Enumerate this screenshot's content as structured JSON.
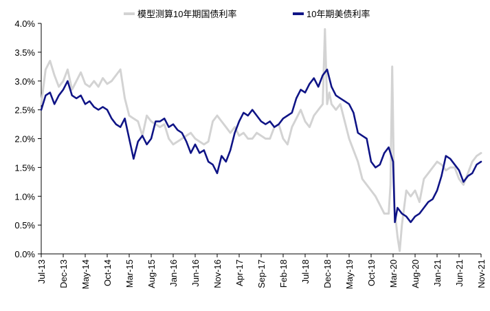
{
  "chart_data": {
    "type": "line",
    "title": "",
    "xlabel": "",
    "ylabel": "",
    "ylim": [
      0,
      4
    ],
    "y_ticks": [
      "0.0%",
      "0.5%",
      "1.0%",
      "1.5%",
      "2.0%",
      "2.5%",
      "3.0%",
      "3.5%",
      "4.0%"
    ],
    "x_tick_labels": [
      "Jul-13",
      "Dec-13",
      "May-14",
      "Oct-14",
      "Mar-15",
      "Aug-15",
      "Jan-16",
      "Jun-16",
      "Nov-16",
      "Apr-17",
      "Sep-17",
      "Feb-18",
      "Jul-18",
      "Dec-18",
      "May-19",
      "Oct-19",
      "Mar-20",
      "Aug-20",
      "Jan-21",
      "Jun-21",
      "Nov-21"
    ],
    "x_unit": "months since Jul-13",
    "xlim": [
      0,
      100
    ],
    "legend_position": "top",
    "series": [
      {
        "name": "模型测算10年期国债利率",
        "color": "#d3d3d3",
        "x": [
          0,
          1,
          2,
          3,
          4,
          5,
          6,
          7,
          8,
          9,
          10,
          11,
          12,
          13,
          14,
          15,
          16,
          17,
          18,
          19,
          20,
          21,
          22,
          23,
          24,
          25,
          26,
          27,
          28,
          29,
          30,
          31,
          32,
          33,
          34,
          35,
          36,
          37,
          38,
          39,
          40,
          41,
          42,
          43,
          44,
          45,
          46,
          47,
          48,
          49,
          50,
          51,
          52,
          53,
          54,
          55,
          56,
          57,
          58,
          59,
          60,
          61,
          62,
          63,
          64,
          64.5,
          65,
          65.5,
          66,
          67,
          68,
          69,
          70,
          71,
          72,
          73,
          74,
          75,
          76,
          77,
          78,
          79,
          79.4,
          79.8,
          80.3,
          81,
          81.5,
          82,
          83,
          84,
          85,
          86,
          87,
          88,
          89,
          90,
          91,
          92,
          93,
          94,
          95,
          96,
          97,
          98,
          99,
          100
        ],
        "values": [
          2.6,
          3.2,
          3.35,
          3.1,
          2.9,
          3.0,
          3.2,
          2.85,
          3.0,
          3.15,
          2.95,
          2.9,
          3.0,
          2.9,
          3.05,
          2.95,
          3.0,
          3.1,
          3.2,
          2.7,
          2.4,
          2.35,
          2.3,
          2.05,
          2.4,
          2.3,
          2.25,
          2.2,
          2.25,
          2.0,
          1.9,
          1.95,
          2.0,
          2.05,
          2.1,
          2.0,
          1.95,
          1.9,
          1.95,
          2.3,
          2.4,
          2.3,
          2.2,
          2.1,
          2.2,
          2.05,
          2.1,
          2.0,
          2.0,
          2.1,
          2.05,
          2.0,
          2.0,
          2.2,
          2.25,
          2.0,
          1.9,
          2.2,
          2.35,
          2.5,
          2.3,
          2.2,
          2.4,
          2.5,
          2.6,
          3.9,
          2.6,
          2.8,
          2.6,
          2.5,
          2.6,
          2.3,
          2.0,
          1.8,
          1.6,
          1.3,
          1.2,
          1.1,
          1.0,
          0.85,
          0.7,
          0.7,
          1.2,
          3.25,
          0.8,
          0.3,
          0.05,
          0.5,
          1.1,
          1.0,
          1.1,
          0.9,
          1.3,
          1.4,
          1.5,
          1.6,
          1.55,
          1.45,
          1.5,
          1.5,
          1.3,
          1.2,
          1.4,
          1.6,
          1.7,
          1.75
        ]
      },
      {
        "name": "10年期美债利率",
        "color": "#0f1486",
        "x": [
          0,
          1,
          2,
          3,
          4,
          5,
          6,
          7,
          8,
          9,
          10,
          11,
          12,
          13,
          14,
          15,
          16,
          17,
          18,
          19,
          20,
          21,
          22,
          23,
          24,
          25,
          26,
          27,
          28,
          29,
          30,
          31,
          32,
          33,
          34,
          35,
          36,
          37,
          38,
          39,
          40,
          41,
          42,
          43,
          44,
          45,
          46,
          47,
          48,
          49,
          50,
          51,
          52,
          53,
          54,
          55,
          56,
          57,
          58,
          59,
          60,
          61,
          62,
          63,
          64,
          65,
          66,
          67,
          68,
          69,
          70,
          71,
          72,
          73,
          74,
          75,
          76,
          77,
          78,
          79,
          80,
          80.4,
          81,
          82,
          83,
          84,
          85,
          86,
          87,
          88,
          89,
          90,
          91,
          92,
          93,
          94,
          95,
          96,
          97,
          98,
          99,
          100
        ],
        "values": [
          2.5,
          2.75,
          2.8,
          2.6,
          2.75,
          2.85,
          3.0,
          2.75,
          2.7,
          2.75,
          2.6,
          2.65,
          2.55,
          2.5,
          2.55,
          2.5,
          2.35,
          2.25,
          2.2,
          2.35,
          2.0,
          1.65,
          1.95,
          2.05,
          1.9,
          2.0,
          2.3,
          2.3,
          2.35,
          2.2,
          2.25,
          2.15,
          2.1,
          1.95,
          1.75,
          1.9,
          1.75,
          1.8,
          1.6,
          1.55,
          1.4,
          1.7,
          1.6,
          1.8,
          2.1,
          2.3,
          2.45,
          2.4,
          2.5,
          2.4,
          2.3,
          2.25,
          2.3,
          2.2,
          2.25,
          2.35,
          2.4,
          2.45,
          2.7,
          2.85,
          2.8,
          2.95,
          3.05,
          2.9,
          3.1,
          3.2,
          2.9,
          2.75,
          2.7,
          2.65,
          2.6,
          2.45,
          2.1,
          2.05,
          2.0,
          1.6,
          1.5,
          1.55,
          1.75,
          1.85,
          1.6,
          0.55,
          0.8,
          0.7,
          0.65,
          0.55,
          0.65,
          0.7,
          0.8,
          0.9,
          0.95,
          1.1,
          1.35,
          1.7,
          1.65,
          1.55,
          1.45,
          1.25,
          1.35,
          1.4,
          1.55,
          1.6
        ]
      }
    ]
  }
}
